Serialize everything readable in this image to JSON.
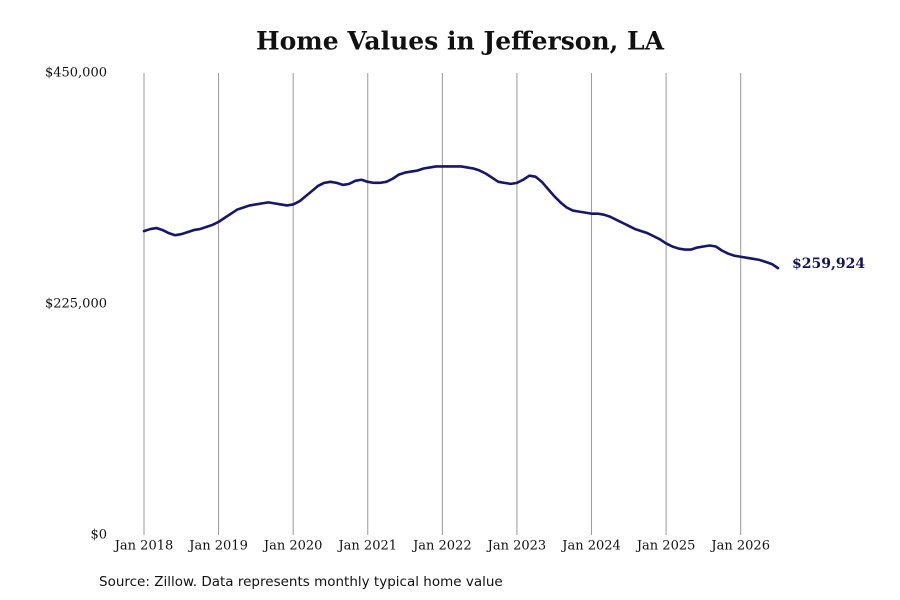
{
  "chart_data": {
    "type": "line",
    "title": "Home Values in Jefferson, LA",
    "source": "Source: Zillow. Data represents monthly typical home value",
    "color": "#16166b",
    "grid": true,
    "x": [
      "2018-01",
      "2018-02",
      "2018-03",
      "2018-04",
      "2018-05",
      "2018-06",
      "2018-07",
      "2018-08",
      "2018-09",
      "2018-10",
      "2018-11",
      "2018-12",
      "2019-01",
      "2019-02",
      "2019-03",
      "2019-04",
      "2019-05",
      "2019-06",
      "2019-07",
      "2019-08",
      "2019-09",
      "2019-10",
      "2019-11",
      "2019-12",
      "2020-01",
      "2020-02",
      "2020-03",
      "2020-04",
      "2020-05",
      "2020-06",
      "2020-07",
      "2020-08",
      "2020-09",
      "2020-10",
      "2020-11",
      "2020-12",
      "2021-01",
      "2021-02",
      "2021-03",
      "2021-04",
      "2021-05",
      "2021-06",
      "2021-07",
      "2021-08",
      "2021-09",
      "2021-10",
      "2021-11",
      "2021-12",
      "2022-01",
      "2022-02",
      "2022-03",
      "2022-04",
      "2022-05",
      "2022-06",
      "2022-07",
      "2022-08",
      "2022-09",
      "2022-10",
      "2022-11",
      "2022-12",
      "2023-01",
      "2023-02",
      "2023-03",
      "2023-04",
      "2023-05",
      "2023-06",
      "2023-07",
      "2023-08",
      "2023-09",
      "2023-10",
      "2023-11",
      "2023-12",
      "2024-01",
      "2024-02",
      "2024-03",
      "2024-04",
      "2024-05",
      "2024-06",
      "2024-07",
      "2024-08",
      "2024-09",
      "2024-10",
      "2024-11",
      "2024-12",
      "2025-01",
      "2025-02",
      "2025-03",
      "2025-04",
      "2025-05",
      "2025-06",
      "2025-07",
      "2025-08",
      "2025-09",
      "2025-10",
      "2025-11",
      "2025-12",
      "2026-01",
      "2026-02",
      "2026-03",
      "2026-04",
      "2026-05",
      "2026-06",
      "2026-07"
    ],
    "values": [
      296000,
      298000,
      299000,
      297000,
      294000,
      292000,
      293000,
      295000,
      297000,
      298000,
      300000,
      302000,
      305000,
      309000,
      313000,
      317000,
      319000,
      321000,
      322000,
      323000,
      324000,
      323000,
      322000,
      321000,
      322000,
      325000,
      330000,
      335000,
      340000,
      343000,
      344000,
      343000,
      341000,
      342000,
      345000,
      346000,
      344000,
      343000,
      343000,
      344000,
      347000,
      351000,
      353000,
      354000,
      355000,
      357000,
      358000,
      359000,
      359000,
      359000,
      359000,
      359000,
      358000,
      357000,
      355000,
      352000,
      348000,
      344000,
      343000,
      342000,
      343000,
      346000,
      350000,
      349000,
      344000,
      337000,
      330000,
      324000,
      319000,
      316000,
      315000,
      314000,
      313000,
      313000,
      312000,
      310000,
      307000,
      304000,
      301000,
      298000,
      296000,
      294000,
      291000,
      288000,
      284000,
      281000,
      279000,
      278000,
      278000,
      280000,
      281000,
      282000,
      281000,
      277000,
      274000,
      272000,
      271000,
      270000,
      269000,
      268000,
      266000,
      264000,
      259924
    ],
    "value_labels": [
      null,
      null,
      null,
      null,
      null,
      null,
      null,
      null,
      null,
      null,
      null,
      null,
      null,
      null,
      null,
      null,
      null,
      null,
      null,
      null,
      null,
      null,
      null,
      null,
      null,
      null,
      null,
      null,
      null,
      null,
      null,
      null,
      null,
      null,
      null,
      null,
      null,
      null,
      null,
      null,
      null,
      null,
      null,
      null,
      null,
      null,
      null,
      null,
      null,
      null,
      null,
      null,
      null,
      null,
      null,
      null,
      null,
      null,
      null,
      null,
      null,
      null,
      null,
      null,
      null,
      null,
      null,
      null,
      null,
      null,
      null,
      null,
      null,
      null,
      null,
      null,
      null,
      null,
      null,
      null,
      null,
      null,
      null,
      null,
      null,
      null,
      null,
      null,
      null,
      null,
      null,
      null,
      null,
      null,
      null,
      null,
      null,
      null,
      null,
      null,
      null,
      null,
      "$259,924"
    ],
    "xlim": [
      "2018-01",
      "2026-07"
    ],
    "xticks": [
      {
        "value": "2018-01",
        "label": "Jan 2018"
      },
      {
        "value": "2019-01",
        "label": "Jan 2019"
      },
      {
        "value": "2020-01",
        "label": "Jan 2020"
      },
      {
        "value": "2021-01",
        "label": "Jan 2021"
      },
      {
        "value": "2022-01",
        "label": "Jan 2022"
      },
      {
        "value": "2023-01",
        "label": "Jan 2023"
      },
      {
        "value": "2024-01",
        "label": "Jan 2024"
      },
      {
        "value": "2025-01",
        "label": "Jan 2025"
      },
      {
        "value": "2026-01",
        "label": "Jan 2026"
      }
    ],
    "ylim": [
      0,
      450000
    ],
    "yticks": [
      {
        "value": 0,
        "label": "$0"
      },
      {
        "value": 225000,
        "label": "$225,000"
      },
      {
        "value": 450000,
        "label": "$450,000"
      }
    ]
  }
}
